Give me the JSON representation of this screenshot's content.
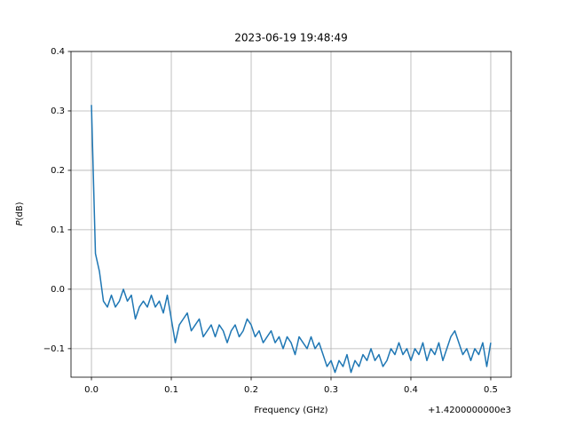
{
  "chart_data": {
    "type": "line",
    "title": "2023-06-19 19:48:49",
    "xlabel": "Frequency (GHz)",
    "ylabel_var": "P",
    "ylabel_unit": "(dB)",
    "x_offset_text": "+1.4200000000e3",
    "x": [
      0,
      0.005,
      0.01,
      0.015,
      0.02,
      0.025,
      0.03,
      0.035,
      0.04,
      0.045,
      0.05,
      0.055,
      0.06,
      0.065,
      0.07,
      0.075,
      0.08,
      0.085,
      0.09,
      0.095,
      0.1,
      0.105,
      0.11,
      0.115,
      0.12,
      0.125,
      0.13,
      0.135,
      0.14,
      0.145,
      0.15,
      0.155,
      0.16,
      0.165,
      0.17,
      0.175,
      0.18,
      0.185,
      0.19,
      0.195,
      0.2,
      0.205,
      0.21,
      0.215,
      0.22,
      0.225,
      0.23,
      0.235,
      0.24,
      0.245,
      0.25,
      0.255,
      0.26,
      0.265,
      0.27,
      0.275,
      0.28,
      0.285,
      0.29,
      0.295,
      0.3,
      0.305,
      0.31,
      0.315,
      0.32,
      0.325,
      0.33,
      0.335,
      0.34,
      0.345,
      0.35,
      0.355,
      0.36,
      0.365,
      0.37,
      0.375,
      0.38,
      0.385,
      0.39,
      0.395,
      0.4,
      0.405,
      0.41,
      0.415,
      0.42,
      0.425,
      0.43,
      0.435,
      0.44,
      0.445,
      0.45,
      0.455,
      0.46,
      0.465,
      0.47,
      0.475,
      0.48,
      0.485,
      0.49,
      0.495,
      0.5
    ],
    "series": [
      {
        "color": "#1f77b4",
        "values": [
          0.31,
          0.06,
          0.03,
          -0.02,
          -0.03,
          -0.01,
          -0.03,
          -0.02,
          0.0,
          -0.02,
          -0.01,
          -0.05,
          -0.03,
          -0.02,
          -0.03,
          -0.01,
          -0.03,
          -0.02,
          -0.04,
          -0.01,
          -0.05,
          -0.09,
          -0.06,
          -0.05,
          -0.04,
          -0.07,
          -0.06,
          -0.05,
          -0.08,
          -0.07,
          -0.06,
          -0.08,
          -0.06,
          -0.07,
          -0.09,
          -0.07,
          -0.06,
          -0.08,
          -0.07,
          -0.05,
          -0.06,
          -0.08,
          -0.07,
          -0.09,
          -0.08,
          -0.07,
          -0.09,
          -0.08,
          -0.1,
          -0.08,
          -0.09,
          -0.11,
          -0.08,
          -0.09,
          -0.1,
          -0.08,
          -0.1,
          -0.09,
          -0.11,
          -0.13,
          -0.12,
          -0.14,
          -0.12,
          -0.13,
          -0.11,
          -0.14,
          -0.12,
          -0.13,
          -0.11,
          -0.12,
          -0.1,
          -0.12,
          -0.11,
          -0.13,
          -0.12,
          -0.1,
          -0.11,
          -0.09,
          -0.11,
          -0.1,
          -0.12,
          -0.1,
          -0.11,
          -0.09,
          -0.12,
          -0.1,
          -0.11,
          -0.09,
          -0.12,
          -0.1,
          -0.08,
          -0.07,
          -0.09,
          -0.11,
          -0.1,
          -0.12,
          -0.1,
          -0.11,
          -0.09,
          -0.13,
          -0.09
        ]
      }
    ],
    "xlim": [
      -0.0256,
      0.5256
    ],
    "ylim": [
      -0.148,
      0.4
    ],
    "xticks": [
      {
        "value": 0,
        "label": "0.0"
      },
      {
        "value": 0.1,
        "label": "0.1"
      },
      {
        "value": 0.2,
        "label": "0.2"
      },
      {
        "value": 0.3,
        "label": "0.3"
      },
      {
        "value": 0.4,
        "label": "0.4"
      },
      {
        "value": 0.5,
        "label": "0.5"
      }
    ],
    "yticks": [
      {
        "value": -0.1,
        "label": "−0.1"
      },
      {
        "value": 0,
        "label": "0.0"
      },
      {
        "value": 0.1,
        "label": "0.1"
      },
      {
        "value": 0.2,
        "label": "0.2"
      },
      {
        "value": 0.3,
        "label": "0.3"
      },
      {
        "value": 0.4,
        "label": "0.4"
      }
    ],
    "grid": true
  }
}
